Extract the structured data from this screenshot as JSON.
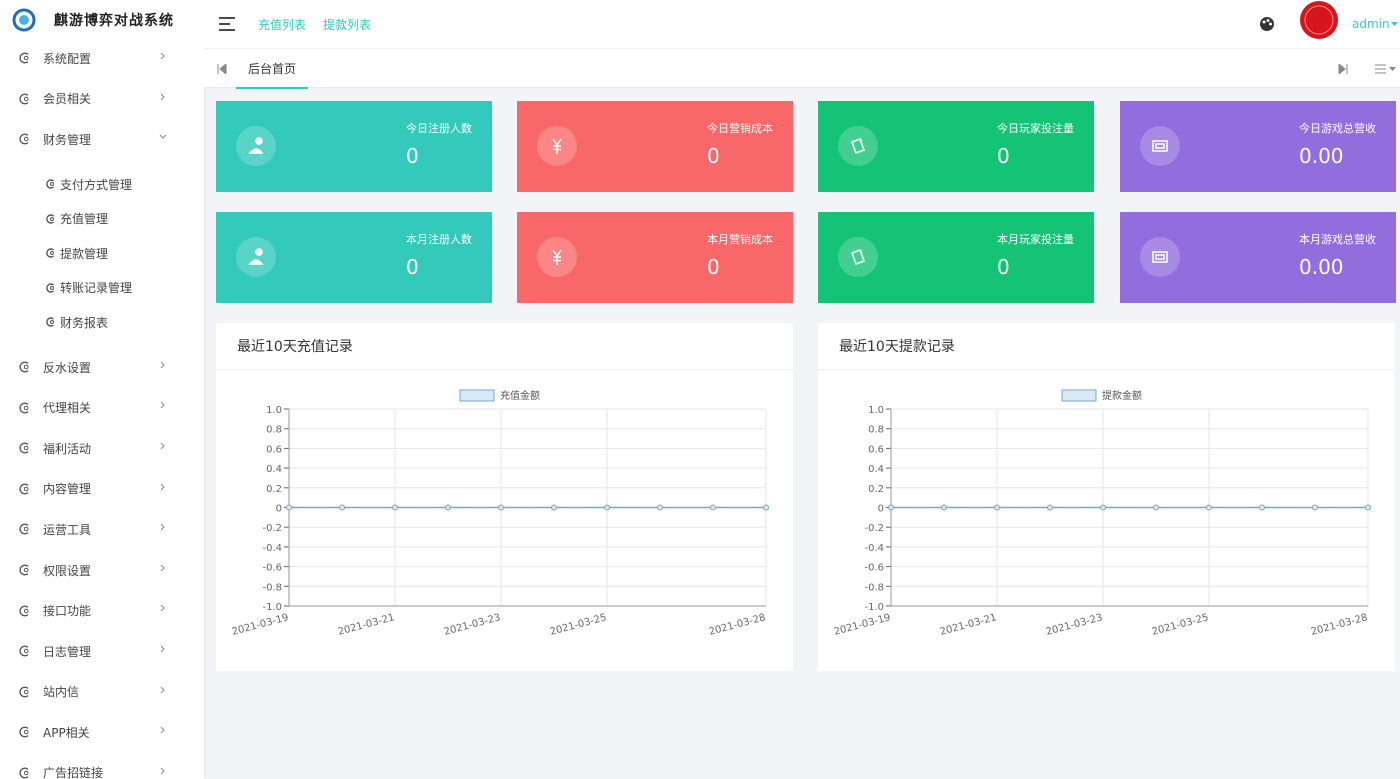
{
  "brand": "麒游博弈对战系统",
  "topbar": {
    "links": [
      "充值列表",
      "提款列表"
    ],
    "user": "admin"
  },
  "menu": [
    {
      "label": "系统配置"
    },
    {
      "label": "会员相关"
    },
    {
      "label": "财务管理",
      "children": [
        "支付方式管理",
        "充值管理",
        "提款管理",
        "转账记录管理",
        "财务报表"
      ]
    },
    {
      "label": "反水设置"
    },
    {
      "label": "代理相关"
    },
    {
      "label": "福利活动"
    },
    {
      "label": "内容管理"
    },
    {
      "label": "运营工具"
    },
    {
      "label": "权限设置"
    },
    {
      "label": "接口功能"
    },
    {
      "label": "日志管理"
    },
    {
      "label": "站内信"
    },
    {
      "label": "APP相关"
    },
    {
      "label": "广告招链接"
    }
  ],
  "tabs": [
    "后台首页"
  ],
  "stats": [
    {
      "label": "今日注册人数",
      "value": "0",
      "color": "#33cabb"
    },
    {
      "label": "今日营销成本",
      "value": "0",
      "color": "#f96868"
    },
    {
      "label": "今日玩家投注量",
      "value": "0",
      "color": "#15c377"
    },
    {
      "label": "今日游戏总营收",
      "value": "0.00",
      "color": "#926dde"
    },
    {
      "label": "本月注册人数",
      "value": "0",
      "color": "#33cabb"
    },
    {
      "label": "本月营销成本",
      "value": "0",
      "color": "#f96868"
    },
    {
      "label": "本月玩家投注量",
      "value": "0",
      "color": "#15c377"
    },
    {
      "label": "本月游戏总营收",
      "value": "0.00",
      "color": "#926dde"
    }
  ],
  "chart_data": [
    {
      "type": "line",
      "title": "最近10天充值记录",
      "categories": [
        "2021-03-19",
        null,
        "2021-03-21",
        null,
        "2021-03-23",
        null,
        "2021-03-25",
        null,
        null,
        "2021-03-28"
      ],
      "series": [
        {
          "name": "充值金额",
          "color": "#6fa8dc",
          "values": [
            0,
            0,
            0,
            0,
            0,
            0,
            0,
            0,
            0,
            0
          ]
        }
      ],
      "ylim": [
        -1,
        1
      ],
      "yticks": [
        {
          "value": 1,
          "label": "1.0"
        },
        0.8,
        0.6,
        0.4,
        0.2,
        0,
        -0.2,
        -0.4,
        -0.6,
        -0.8,
        {
          "value": -1,
          "label": "-1.0"
        }
      ],
      "grid": true
    },
    {
      "type": "line",
      "title": "最近10天提款记录",
      "categories": [
        "2021-03-19",
        null,
        "2021-03-21",
        null,
        "2021-03-23",
        null,
        "2021-03-25",
        null,
        null,
        "2021-03-28"
      ],
      "series": [
        {
          "name": "提款金额",
          "color": "#6fa8dc",
          "values": [
            0,
            0,
            0,
            0,
            0,
            0,
            0,
            0,
            0,
            0
          ]
        }
      ],
      "ylim": [
        -1,
        1
      ],
      "yticks": [
        {
          "value": 1,
          "label": "1.0"
        },
        0.8,
        0.6,
        0.4,
        0.2,
        0,
        -0.2,
        -0.4,
        -0.6,
        -0.8,
        {
          "value": -1,
          "label": "-1.0"
        }
      ],
      "grid": true
    }
  ]
}
